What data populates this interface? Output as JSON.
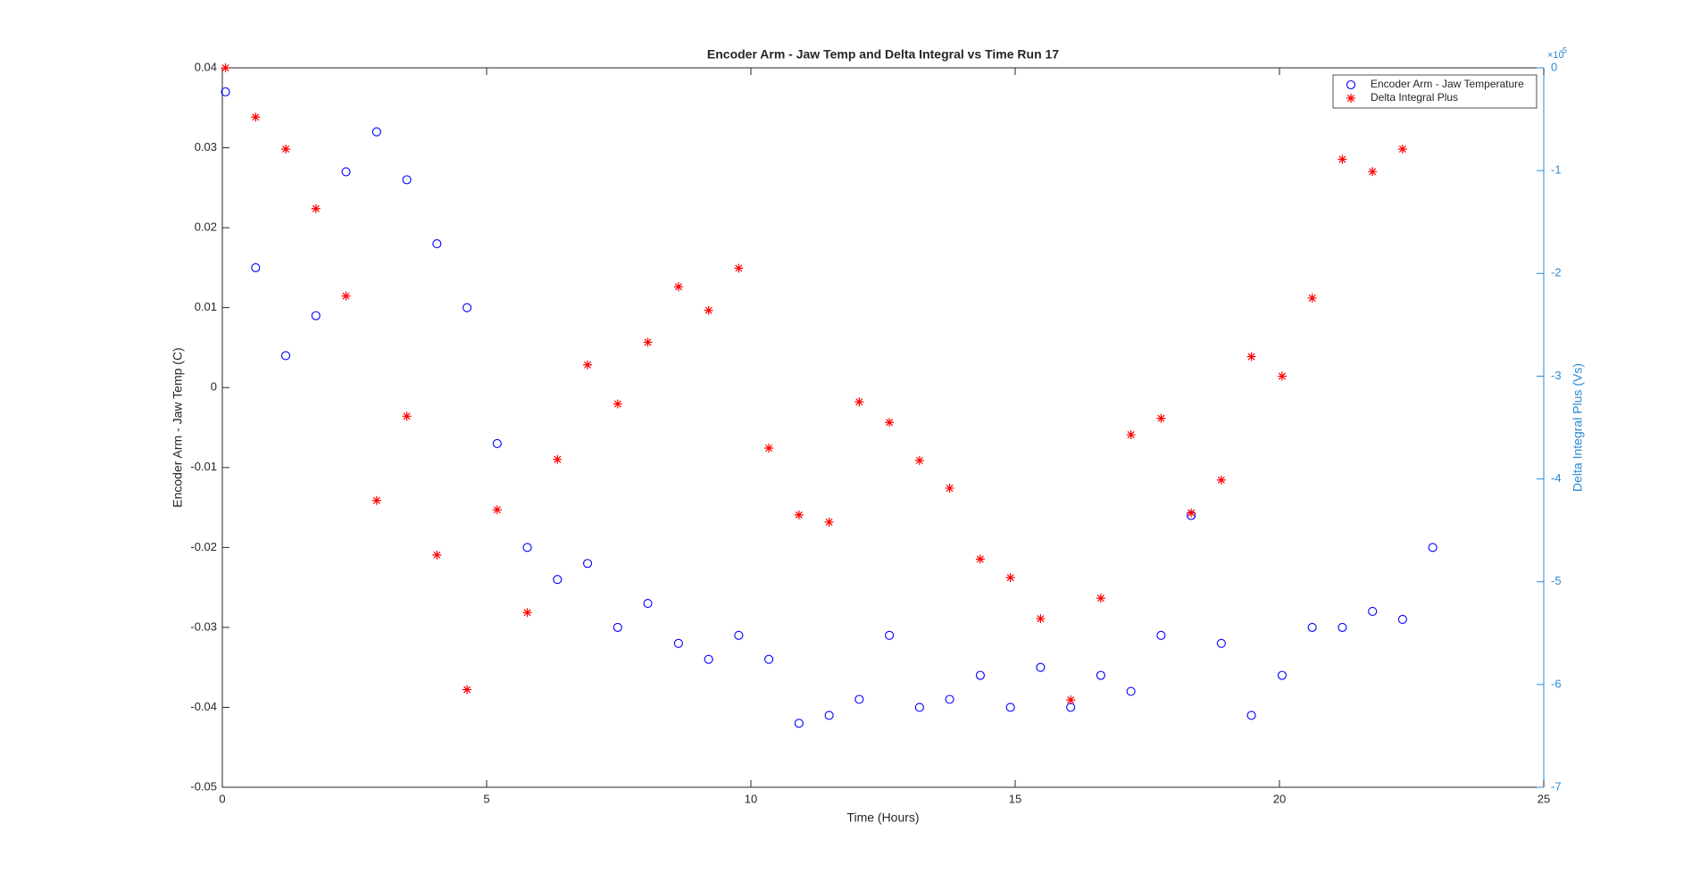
{
  "chart_data": {
    "type": "scatter",
    "title": "Encoder Arm - Jaw Temp and Delta Integral vs Time Run 17",
    "x_label": "Time (Hours)",
    "y_label": "Encoder Arm - Jaw Temp (C)",
    "y2_label": "Delta Integral Plus (Vs)",
    "y2_multiplier": "×10",
    "y2_exponent": "-5",
    "xlim": [
      0,
      25
    ],
    "xticks": [
      0,
      5,
      10,
      15,
      20,
      25
    ],
    "ylim": [
      -0.05,
      0.04
    ],
    "yticks": [
      -0.05,
      -0.04,
      -0.03,
      -0.02,
      -0.01,
      0,
      0.01,
      0.02,
      0.03,
      0.04
    ],
    "y2lim": [
      -7,
      0
    ],
    "y2ticks": [
      -7,
      -6,
      -5,
      -4,
      -3,
      -2,
      -1,
      0
    ],
    "y2_color": "#2a8ad4",
    "legend": "northeast",
    "series": [
      {
        "name": "Encoder Arm - Jaw Temperature",
        "color": "#0000ff",
        "marker": "circle",
        "x": [
          0.06,
          0.63,
          1.2,
          1.77,
          2.34,
          2.92,
          3.49,
          4.06,
          4.63,
          5.2,
          5.77,
          6.34,
          6.91,
          7.48,
          8.05,
          8.63,
          9.2,
          9.77,
          10.34,
          10.91,
          11.48,
          12.05,
          12.62,
          13.19,
          13.76,
          14.34,
          14.91,
          15.48,
          16.05,
          16.62,
          17.19,
          17.76,
          18.33,
          18.9,
          19.47,
          20.05,
          20.62,
          21.19,
          21.76,
          22.33,
          22.9
        ],
        "values": [
          0.037,
          0.015,
          0.004,
          0.009,
          0.027,
          0.032,
          0.026,
          0.018,
          0.01,
          -0.007,
          -0.02,
          -0.024,
          -0.022,
          -0.03,
          -0.027,
          -0.032,
          -0.034,
          -0.031,
          -0.034,
          -0.042,
          -0.041,
          -0.039,
          -0.031,
          -0.04,
          -0.039,
          -0.036,
          -0.04,
          -0.035,
          -0.04,
          -0.036,
          -0.038,
          -0.031,
          -0.016,
          -0.032,
          -0.041,
          -0.036,
          -0.03,
          -0.03,
          -0.028,
          -0.029,
          -0.02
        ]
      },
      {
        "name": "Delta Integral Plus",
        "color": "#ff0000",
        "marker": "star",
        "axis": "y2",
        "x": [
          0.06,
          0.63,
          1.2,
          1.77,
          2.34,
          2.92,
          3.49,
          4.06,
          4.63,
          5.2,
          5.77,
          6.34,
          6.91,
          7.48,
          8.05,
          8.63,
          9.2,
          9.77,
          10.34,
          10.91,
          11.48,
          12.05,
          12.62,
          13.19,
          13.76,
          14.34,
          14.91,
          15.48,
          16.05,
          16.62,
          17.19,
          17.76,
          18.33,
          18.9,
          19.47,
          20.05,
          20.62,
          21.19,
          21.76,
          22.33
        ],
        "values": [
          0.0,
          -0.48,
          -0.79,
          -1.37,
          -2.22,
          -4.21,
          -3.39,
          -4.74,
          -6.05,
          -4.3,
          -5.3,
          -3.81,
          -2.89,
          -3.27,
          -2.67,
          -2.13,
          -2.36,
          -1.95,
          -3.7,
          -4.35,
          -4.42,
          -3.25,
          -3.45,
          -3.82,
          -4.09,
          -4.78,
          -4.96,
          -5.36,
          -6.15,
          -5.16,
          -3.57,
          -3.41,
          -4.33,
          -4.01,
          -2.81,
          -3.0,
          -2.24,
          -0.89,
          -1.01,
          -0.79
        ]
      }
    ]
  }
}
